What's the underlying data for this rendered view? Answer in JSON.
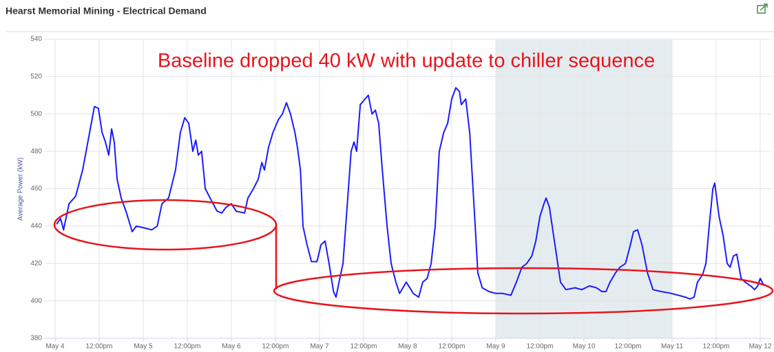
{
  "chart_data": {
    "type": "line",
    "title": "Hearst Memorial Mining - Electrical Demand",
    "annotation": "Baseline dropped 40 kW with update to chiller sequence",
    "y_label": "Average Power (kW)",
    "xlim": [
      -3,
      195
    ],
    "ylim": [
      380,
      540
    ],
    "yticks": [
      380,
      400,
      420,
      440,
      460,
      480,
      500,
      520,
      540
    ],
    "xticks": [
      {
        "value": 0,
        "label": "May 4"
      },
      {
        "value": 12,
        "label": "12:00pm"
      },
      {
        "value": 24,
        "label": "May 5"
      },
      {
        "value": 36,
        "label": "12:00pm"
      },
      {
        "value": 48,
        "label": "May 6"
      },
      {
        "value": 60,
        "label": "12:00pm"
      },
      {
        "value": 72,
        "label": "May 7"
      },
      {
        "value": 84,
        "label": "12:00pm"
      },
      {
        "value": 96,
        "label": "May 8"
      },
      {
        "value": 108,
        "label": "12:00pm"
      },
      {
        "value": 120,
        "label": "May 9"
      },
      {
        "value": 132,
        "label": "12:00pm"
      },
      {
        "value": 144,
        "label": "May 10"
      },
      {
        "value": 156,
        "label": "12:00pm"
      },
      {
        "value": 168,
        "label": "May 11"
      },
      {
        "value": 180,
        "label": "12:00pm"
      },
      {
        "value": 192,
        "label": "May 12"
      }
    ],
    "grid": true,
    "plot_band": {
      "from": 120,
      "to": 168,
      "color": "#e5ecef"
    },
    "x": [
      0.4,
      1.5,
      2.3,
      3.8,
      5.6,
      7.5,
      9.4,
      10.7,
      11.8,
      12.8,
      13.7,
      14.6,
      15.4,
      16.1,
      16.9,
      18.0,
      19.3,
      21.0,
      22.1,
      24.4,
      26.3,
      27.8,
      29.1,
      30.9,
      32.8,
      34.1,
      35.3,
      36.4,
      37.5,
      38.3,
      39.0,
      39.9,
      40.9,
      42.2,
      44.1,
      45.4,
      46.5,
      48.0,
      49.3,
      51.6,
      52.5,
      54.0,
      55.3,
      56.3,
      57.0,
      58.1,
      59.3,
      60.8,
      61.9,
      63.0,
      64.1,
      65.3,
      66.0,
      66.8,
      67.5,
      68.6,
      69.8,
      71.3,
      72.4,
      73.5,
      74.6,
      75.8,
      76.5,
      77.3,
      78.4,
      79.5,
      80.6,
      81.4,
      82.1,
      83.1,
      84.4,
      85.3,
      86.3,
      87.2,
      88.1,
      89.1,
      90.4,
      91.5,
      92.8,
      93.8,
      95.6,
      96.6,
      97.5,
      99.0,
      100.1,
      101.3,
      102.4,
      103.5,
      104.6,
      105.8,
      106.9,
      108.0,
      109.1,
      110.1,
      110.6,
      111.8,
      112.9,
      114.4,
      115.1,
      116.3,
      118.1,
      120.0,
      121.9,
      124.1,
      125.6,
      127.1,
      128.4,
      129.8,
      130.9,
      132.0,
      133.1,
      133.7,
      134.6,
      136.1,
      137.6,
      139.1,
      141.6,
      143.4,
      145.5,
      147.4,
      148.9,
      150.0,
      151.1,
      152.6,
      153.8,
      155.3,
      156.4,
      157.5,
      158.6,
      159.8,
      161.3,
      162.8,
      165.0,
      167.8,
      169.7,
      171.6,
      172.9,
      174.0,
      174.9,
      176.3,
      177.2,
      178.1,
      179.1,
      179.6,
      180.8,
      181.9,
      183.0,
      183.8,
      184.7,
      185.6,
      186.8,
      187.9,
      189.4,
      190.5,
      191.3,
      192.0,
      192.8,
      193.7
    ],
    "series": [
      {
        "name": "Average Power",
        "color": "#1a1aff",
        "values": [
          441,
          444,
          438,
          452,
          456,
          470,
          490,
          504,
          503,
          490,
          485,
          478,
          492,
          485,
          465,
          455,
          448,
          437,
          440,
          439,
          438,
          440,
          452,
          455,
          470,
          490,
          498,
          495,
          480,
          486,
          478,
          480,
          460,
          455,
          448,
          447,
          450,
          452,
          448,
          447,
          455,
          460,
          465,
          474,
          470,
          482,
          490,
          497,
          500,
          506,
          500,
          490,
          482,
          470,
          440,
          430,
          421,
          421,
          430,
          432,
          420,
          405,
          402,
          410,
          420,
          450,
          480,
          485,
          480,
          505,
          508,
          510,
          500,
          502,
          495,
          470,
          440,
          420,
          410,
          404,
          410,
          407,
          404,
          402,
          410,
          412,
          420,
          440,
          480,
          490,
          495,
          508,
          514,
          512,
          505,
          508,
          490,
          440,
          415,
          407,
          405,
          404,
          404,
          403,
          410,
          418,
          420,
          424,
          432,
          445,
          452,
          455,
          450,
          430,
          410,
          406,
          407,
          406,
          408,
          407,
          405,
          405,
          410,
          415,
          418,
          420,
          428,
          437,
          438,
          430,
          415,
          406,
          405,
          404,
          403,
          402,
          401,
          402,
          410,
          414,
          420,
          440,
          460,
          463,
          445,
          435,
          420,
          418,
          424,
          425,
          412,
          410,
          408,
          406,
          408,
          412,
          409,
          408
        ]
      }
    ]
  }
}
